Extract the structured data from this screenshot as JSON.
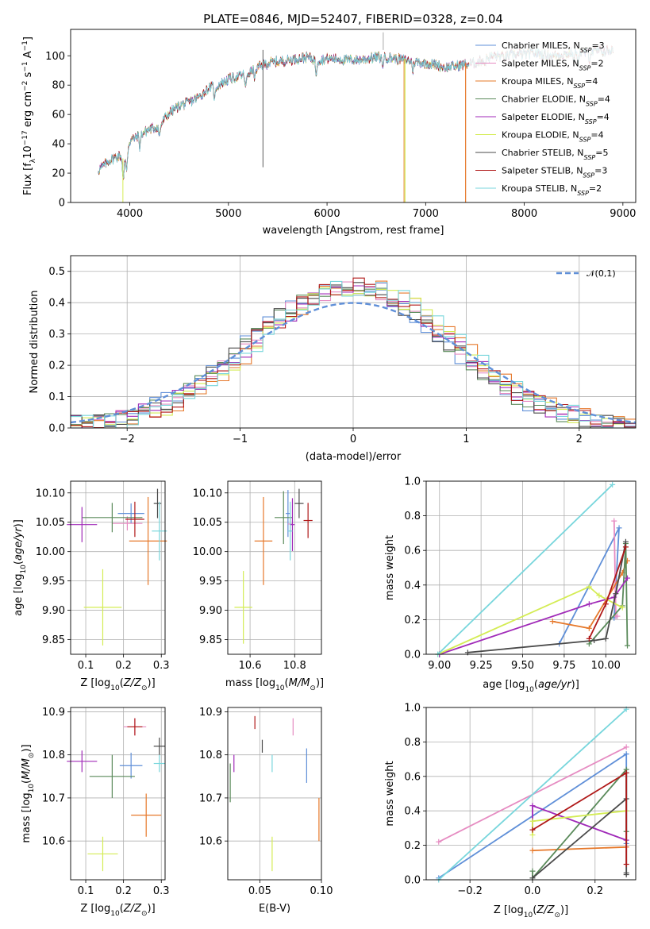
{
  "models": [
    {
      "name": "Chabrier MILES",
      "nssp": "3",
      "color": "#5f8fd8"
    },
    {
      "name": "Salpeter MILES",
      "nssp": "2",
      "color": "#e68cc2"
    },
    {
      "name": "Kroupa MILES",
      "nssp": "4",
      "color": "#e6782a"
    },
    {
      "name": "Chabrier ELODIE",
      "nssp": "4",
      "color": "#5a8a5a"
    },
    {
      "name": "Salpeter ELODIE",
      "nssp": "4",
      "color": "#a02ab8"
    },
    {
      "name": "Kroupa ELODIE",
      "nssp": "4",
      "color": "#d4ec54"
    },
    {
      "name": "Chabrier STELIB",
      "nssp": "5",
      "color": "#4a4a4a"
    },
    {
      "name": "Salpeter STELIB",
      "nssp": "3",
      "color": "#b01818"
    },
    {
      "name": "Kroupa STELIB",
      "nssp": "2",
      "color": "#78d6dc"
    }
  ],
  "legend_suffix": ", N",
  "legend_sub": "SSP",
  "chart_data": [
    {
      "id": "spectrum",
      "type": "line",
      "title": "PLATE=0846, MJD=52407, FIBERID=0328, z=0.04",
      "xlabel": "wavelength [Angstrom, rest frame]",
      "ylabel": "Flux [f",
      "ylabel_parts": [
        "Flux [f",
        "λ",
        "10",
        "−17",
        " erg cm",
        "−2",
        " s",
        "−1",
        " A",
        "−1",
        "]"
      ],
      "xlim": [
        3400,
        9130
      ],
      "ylim": [
        0,
        118
      ],
      "xticks": [
        4000,
        5000,
        6000,
        7000,
        8000,
        9000
      ],
      "yticks": [
        0,
        20,
        40,
        60,
        80,
        100
      ],
      "continuum": [
        [
          3680,
          22
        ],
        [
          3800,
          29
        ],
        [
          3900,
          32
        ],
        [
          3950,
          28
        ],
        [
          4000,
          42
        ],
        [
          4100,
          46
        ],
        [
          4200,
          50
        ],
        [
          4300,
          52
        ],
        [
          4400,
          61
        ],
        [
          4500,
          66
        ],
        [
          4600,
          68
        ],
        [
          4700,
          72
        ],
        [
          4800,
          78
        ],
        [
          4900,
          80
        ],
        [
          5000,
          84
        ],
        [
          5100,
          86
        ],
        [
          5200,
          88
        ],
        [
          5300,
          92
        ],
        [
          5400,
          95
        ],
        [
          5500,
          96
        ],
        [
          5600,
          97
        ],
        [
          5700,
          98
        ],
        [
          5800,
          99
        ],
        [
          5900,
          97
        ],
        [
          6000,
          98
        ],
        [
          6100,
          98
        ],
        [
          6200,
          97
        ],
        [
          6300,
          97
        ],
        [
          6400,
          98
        ],
        [
          6500,
          99
        ],
        [
          6600,
          99
        ],
        [
          6700,
          98
        ],
        [
          6800,
          97
        ],
        [
          6900,
          96
        ],
        [
          7000,
          95
        ],
        [
          7100,
          94
        ],
        [
          7200,
          92
        ],
        [
          7300,
          93
        ],
        [
          7400,
          94
        ],
        [
          7500,
          95
        ],
        [
          7600,
          98
        ],
        [
          7700,
          100
        ],
        [
          7800,
          99
        ],
        [
          7900,
          101
        ],
        [
          8000,
          101
        ],
        [
          8100,
          102
        ],
        [
          8200,
          101
        ],
        [
          8300,
          100
        ],
        [
          8400,
          101
        ],
        [
          8500,
          102
        ],
        [
          8600,
          102
        ],
        [
          8700,
          103
        ],
        [
          8800,
          103
        ],
        [
          8900,
          104
        ]
      ]
    },
    {
      "id": "residuals",
      "type": "histogram",
      "xlabel": "(data-model)/error",
      "ylabel": "Normed distribution",
      "xlim": [
        -2.5,
        2.5
      ],
      "ylim": [
        0,
        0.55
      ],
      "xticks": [
        -2,
        -1,
        0,
        1,
        2
      ],
      "yticks": [
        0.0,
        0.1,
        0.2,
        0.3,
        0.4,
        0.5
      ],
      "gaussian_label": "𝒩(0,1)",
      "bin_width": 0.1
    },
    {
      "id": "age_vs_Z",
      "type": "errorbar",
      "xlabel": "Z [log10(Z/Z⊙)]",
      "ylabel": "age  [log10(age/yr)]",
      "xlim": [
        0.06,
        0.31
      ],
      "ylim": [
        9.825,
        10.12
      ],
      "xticks": [
        0.1,
        0.2,
        0.3
      ],
      "yticks": [
        9.85,
        9.9,
        9.95,
        10.0,
        10.05,
        10.1
      ],
      "points": [
        {
          "x": 0.22,
          "y": 10.065,
          "ex": 0.035,
          "ey": 0.017
        },
        {
          "x": 0.21,
          "y": 10.048,
          "ex": 0.04,
          "ey": 0.012
        },
        {
          "x": 0.265,
          "y": 10.018,
          "ex": 0.05,
          "ey": 0.075
        },
        {
          "x": 0.17,
          "y": 10.058,
          "ex": 0.08,
          "ey": 0.025
        },
        {
          "x": 0.09,
          "y": 10.046,
          "ex": 0.04,
          "ey": 0.03
        },
        {
          "x": 0.145,
          "y": 9.905,
          "ex": 0.05,
          "ey": 0.065
        },
        {
          "x": 0.29,
          "y": 10.082,
          "ex": 0.01,
          "ey": 0.025
        },
        {
          "x": 0.23,
          "y": 10.055,
          "ex": 0.025,
          "ey": 0.03
        },
        {
          "x": 0.295,
          "y": 10.035,
          "ex": 0.02,
          "ey": 0.05
        }
      ]
    },
    {
      "id": "age_vs_mass",
      "type": "errorbar",
      "xlabel": "mass [log10(M/M⊙)]",
      "ylabel": "",
      "xlim": [
        10.5,
        10.92
      ],
      "ylim": [
        9.825,
        10.12
      ],
      "xticks": [
        10.6,
        10.8
      ],
      "yticks": [
        9.85,
        9.9,
        9.95,
        10.0,
        10.05,
        10.1
      ],
      "points": [
        {
          "x": 10.77,
          "y": 10.065,
          "ex": 0.01,
          "ey": 0.04
        },
        {
          "x": 10.78,
          "y": 10.047,
          "ex": 0.01,
          "ey": 0.013
        },
        {
          "x": 10.66,
          "y": 10.018,
          "ex": 0.04,
          "ey": 0.075
        },
        {
          "x": 10.75,
          "y": 10.058,
          "ex": 0.04,
          "ey": 0.045
        },
        {
          "x": 10.79,
          "y": 10.046,
          "ex": 0.01,
          "ey": 0.045
        },
        {
          "x": 10.57,
          "y": 9.905,
          "ex": 0.04,
          "ey": 0.062
        },
        {
          "x": 10.82,
          "y": 10.082,
          "ex": 0.02,
          "ey": 0.025
        },
        {
          "x": 10.86,
          "y": 10.053,
          "ex": 0.02,
          "ey": 0.03
        },
        {
          "x": 10.78,
          "y": 10.035,
          "ex": 0.01,
          "ey": 0.05
        }
      ]
    },
    {
      "id": "weight_vs_age",
      "type": "line",
      "xlabel": "age  [log10(age/yr)]",
      "ylabel": "mass weight",
      "xlim": [
        8.92,
        10.18
      ],
      "ylim": [
        0,
        1
      ],
      "xticks": [
        9.0,
        9.25,
        9.5,
        9.75,
        10.0
      ],
      "yticks": [
        0.0,
        0.2,
        0.4,
        0.6,
        0.8,
        1.0
      ],
      "series": [
        {
          "x": [
            9.72,
            10.08,
            10.05
          ],
          "y": [
            0.06,
            0.73,
            0.21
          ]
        },
        {
          "x": [
            10.05,
            10.06,
            10.07
          ],
          "y": [
            0.77,
            0.22,
            0.22
          ]
        },
        {
          "x": [
            9.68,
            9.9,
            10.1,
            10.13
          ],
          "y": [
            0.19,
            0.15,
            0.47,
            0.54
          ]
        },
        {
          "x": [
            9.9,
            10.1,
            10.12,
            10.13
          ],
          "y": [
            0.06,
            0.28,
            0.64,
            0.05
          ]
        },
        {
          "x": [
            9.0,
            9.9,
            10.05,
            10.13
          ],
          "y": [
            0.0,
            0.29,
            0.33,
            0.44
          ]
        },
        {
          "x": [
            8.99,
            9.9,
            9.96,
            10.1
          ],
          "y": [
            0.0,
            0.39,
            0.34,
            0.27
          ]
        },
        {
          "x": [
            9.17,
            9.93,
            10.0,
            10.06,
            10.12
          ],
          "y": [
            0.01,
            0.08,
            0.09,
            0.35,
            0.65
          ]
        },
        {
          "x": [
            9.9,
            10.0,
            10.12
          ],
          "y": [
            0.09,
            0.29,
            0.62
          ]
        },
        {
          "x": [
            8.99,
            10.04
          ],
          "y": [
            0.0,
            0.98
          ]
        }
      ]
    },
    {
      "id": "mass_vs_Z",
      "type": "errorbar",
      "xlabel": "Z [log10(Z/Z⊙)]",
      "ylabel": "mass [log10(M/M⊙)]",
      "xlim": [
        0.06,
        0.31
      ],
      "ylim": [
        10.51,
        10.91
      ],
      "xticks": [
        0.1,
        0.2,
        0.3
      ],
      "yticks": [
        10.6,
        10.7,
        10.8,
        10.9
      ],
      "points": [
        {
          "x": 0.22,
          "y": 10.775,
          "ex": 0.03,
          "ey": 0.03
        },
        {
          "x": 0.23,
          "y": 10.865,
          "ex": 0.03,
          "ey": 0.02
        },
        {
          "x": 0.26,
          "y": 10.66,
          "ex": 0.04,
          "ey": 0.05
        },
        {
          "x": 0.17,
          "y": 10.75,
          "ex": 0.06,
          "ey": 0.05
        },
        {
          "x": 0.09,
          "y": 10.785,
          "ex": 0.04,
          "ey": 0.025
        },
        {
          "x": 0.145,
          "y": 10.57,
          "ex": 0.04,
          "ey": 0.04
        },
        {
          "x": 0.295,
          "y": 10.82,
          "ex": 0.015,
          "ey": 0.02
        },
        {
          "x": 0.23,
          "y": 10.865,
          "ex": 0.02,
          "ey": 0.02
        },
        {
          "x": 0.295,
          "y": 10.78,
          "ex": 0.015,
          "ey": 0.02
        }
      ]
    },
    {
      "id": "mass_vs_ebv",
      "type": "errorbar",
      "xlabel": "E(B-V)",
      "ylabel": "",
      "xlim": [
        0.024,
        0.1
      ],
      "ylim": [
        10.51,
        10.91
      ],
      "xticks": [
        0.05,
        0.1
      ],
      "yticks": [
        10.6,
        10.7,
        10.8,
        10.9
      ],
      "points": [
        {
          "x": 0.088,
          "y": 10.775,
          "ex": 0,
          "ey": 0.04
        },
        {
          "x": 0.077,
          "y": 10.865,
          "ex": 0,
          "ey": 0.02
        },
        {
          "x": 0.098,
          "y": 10.65,
          "ex": 0,
          "ey": 0.05
        },
        {
          "x": 0.026,
          "y": 10.735,
          "ex": 0,
          "ey": 0.045
        },
        {
          "x": 0.029,
          "y": 10.78,
          "ex": 0,
          "ey": 0.02
        },
        {
          "x": 0.06,
          "y": 10.57,
          "ex": 0,
          "ey": 0.04
        },
        {
          "x": 0.052,
          "y": 10.82,
          "ex": 0,
          "ey": 0.015
        },
        {
          "x": 0.046,
          "y": 10.875,
          "ex": 0,
          "ey": 0.015
        },
        {
          "x": 0.06,
          "y": 10.78,
          "ex": 0,
          "ey": 0.02
        }
      ]
    },
    {
      "id": "weight_vs_Z",
      "type": "line",
      "xlabel": "Z [log10(Z/Z⊙)]",
      "ylabel": "mass weight",
      "xlim": [
        -0.34,
        0.33
      ],
      "ylim": [
        0,
        1
      ],
      "xticks": [
        -0.2,
        0.0,
        0.2
      ],
      "yticks": [
        0.0,
        0.2,
        0.4,
        0.6,
        0.8,
        1.0
      ],
      "series": [
        {
          "x": [
            -0.3,
            0.3,
            0.3
          ],
          "y": [
            0.01,
            0.73,
            0.21
          ]
        },
        {
          "x": [
            -0.3,
            0.3
          ],
          "y": [
            0.22,
            0.77
          ]
        },
        {
          "x": [
            0.0,
            0.3
          ],
          "y": [
            0.17,
            0.19
          ]
        },
        {
          "x": [
            0.0,
            0.0,
            0.3,
            0.3
          ],
          "y": [
            0.05,
            0.01,
            0.64,
            0.28
          ]
        },
        {
          "x": [
            0.0,
            0.0,
            0.3
          ],
          "y": [
            0.29,
            0.43,
            0.23
          ]
        },
        {
          "x": [
            0.0,
            0.0,
            0.3
          ],
          "y": [
            0.26,
            0.34,
            0.4
          ]
        },
        {
          "x": [
            0.0,
            0.3,
            0.3,
            0.3,
            0.3
          ],
          "y": [
            0.01,
            0.47,
            0.62,
            0.04,
            0.03
          ]
        },
        {
          "x": [
            0.0,
            0.3,
            0.3
          ],
          "y": [
            0.29,
            0.62,
            0.09
          ]
        },
        {
          "x": [
            -0.3,
            0.3
          ],
          "y": [
            0.0,
            0.99
          ]
        }
      ]
    }
  ]
}
